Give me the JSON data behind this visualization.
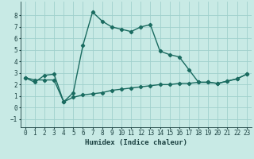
{
  "xlabel": "Humidex (Indice chaleur)",
  "ylabel": "",
  "bg_color": "#c8eae5",
  "grid_color": "#a0d0cc",
  "line_color": "#1a6b60",
  "xlim": [
    -0.5,
    23.5
  ],
  "ylim": [
    -1.7,
    9.2
  ],
  "xticks": [
    0,
    1,
    2,
    3,
    4,
    5,
    6,
    7,
    8,
    9,
    10,
    11,
    12,
    13,
    14,
    15,
    16,
    17,
    18,
    19,
    20,
    21,
    22,
    23
  ],
  "yticks": [
    -1,
    0,
    1,
    2,
    3,
    4,
    5,
    6,
    7,
    8
  ],
  "line1_x": [
    0,
    1,
    2,
    3,
    4,
    5,
    6,
    7,
    8,
    9,
    10,
    11,
    12,
    13,
    14,
    15,
    16,
    17,
    18,
    19,
    20,
    21,
    22,
    23
  ],
  "line1_y": [
    2.6,
    2.2,
    2.8,
    2.9,
    0.5,
    1.3,
    5.4,
    8.3,
    7.5,
    7.0,
    6.8,
    6.6,
    7.0,
    7.2,
    4.9,
    4.6,
    4.4,
    3.3,
    2.2,
    2.2,
    2.1,
    2.3,
    2.5,
    2.9
  ],
  "line2_x": [
    0,
    1,
    2,
    3,
    4,
    5,
    6,
    7,
    8,
    9,
    10,
    11,
    12,
    13,
    14,
    15,
    16,
    17,
    18,
    19,
    20,
    21,
    22,
    23
  ],
  "line2_y": [
    2.6,
    2.4,
    2.4,
    2.4,
    0.5,
    0.9,
    1.1,
    1.2,
    1.3,
    1.5,
    1.6,
    1.7,
    1.8,
    1.9,
    2.0,
    2.0,
    2.1,
    2.1,
    2.2,
    2.2,
    2.1,
    2.3,
    2.5,
    2.9
  ],
  "marker": "D",
  "markersize": 2.2,
  "linewidth": 1.0,
  "tick_fontsize": 5.5,
  "xlabel_fontsize": 6.5
}
